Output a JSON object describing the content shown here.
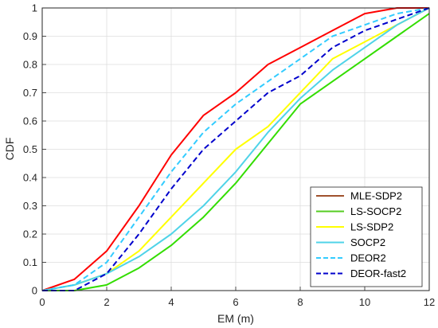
{
  "chart_data": {
    "type": "line",
    "xlabel": "EM (m)",
    "ylabel": "CDF",
    "xlim": [
      0,
      12
    ],
    "ylim": [
      0,
      1
    ],
    "xticks": [
      "0",
      "2",
      "4",
      "6",
      "8",
      "10",
      "12"
    ],
    "yticks": [
      "0",
      "0.1",
      "0.2",
      "0.3",
      "0.4",
      "0.5",
      "0.6",
      "0.7",
      "0.8",
      "0.9",
      "1"
    ],
    "grid": true,
    "legend_position": "bottom-right",
    "x": [
      0,
      1,
      2,
      3,
      4,
      5,
      6,
      7,
      8,
      9,
      10,
      11,
      12
    ],
    "series": [
      {
        "name": "MLE-SDP2",
        "color": "#ff0000",
        "legend_color": "#a0522d",
        "dash": "solid",
        "values": [
          0,
          0.04,
          0.14,
          0.3,
          0.48,
          0.62,
          0.7,
          0.8,
          0.86,
          0.92,
          0.98,
          1.0,
          1.0
        ]
      },
      {
        "name": "LS-SOCP2",
        "color": "#33dd00",
        "legend_color": "#55cc22",
        "dash": "solid",
        "values": [
          0,
          0,
          0.02,
          0.08,
          0.16,
          0.26,
          0.38,
          0.52,
          0.66,
          0.74,
          0.82,
          0.9,
          0.98
        ]
      },
      {
        "name": "LS-SDP2",
        "color": "#ffff00",
        "legend_color": "#ffff00",
        "dash": "solid",
        "values": [
          0,
          0.02,
          0.06,
          0.14,
          0.26,
          0.38,
          0.5,
          0.58,
          0.7,
          0.82,
          0.88,
          0.94,
          1.0
        ]
      },
      {
        "name": "SOCP2",
        "color": "#4fd3e8",
        "legend_color": "#4fd3e8",
        "dash": "solid",
        "values": [
          0,
          0.02,
          0.06,
          0.12,
          0.2,
          0.3,
          0.42,
          0.56,
          0.68,
          0.78,
          0.86,
          0.94,
          1.0
        ]
      },
      {
        "name": "DEOR2",
        "color": "#33ccff",
        "legend_color": "#33ccff",
        "dash": "dashed",
        "values": [
          0,
          0.02,
          0.1,
          0.26,
          0.42,
          0.56,
          0.66,
          0.74,
          0.82,
          0.9,
          0.94,
          0.98,
          1.0
        ]
      },
      {
        "name": "DEOR-fast2",
        "color": "#0000cc",
        "legend_color": "#0000cc",
        "dash": "dashed",
        "values": [
          0,
          0,
          0.06,
          0.2,
          0.36,
          0.5,
          0.6,
          0.7,
          0.76,
          0.86,
          0.92,
          0.96,
          1.0
        ]
      }
    ]
  }
}
